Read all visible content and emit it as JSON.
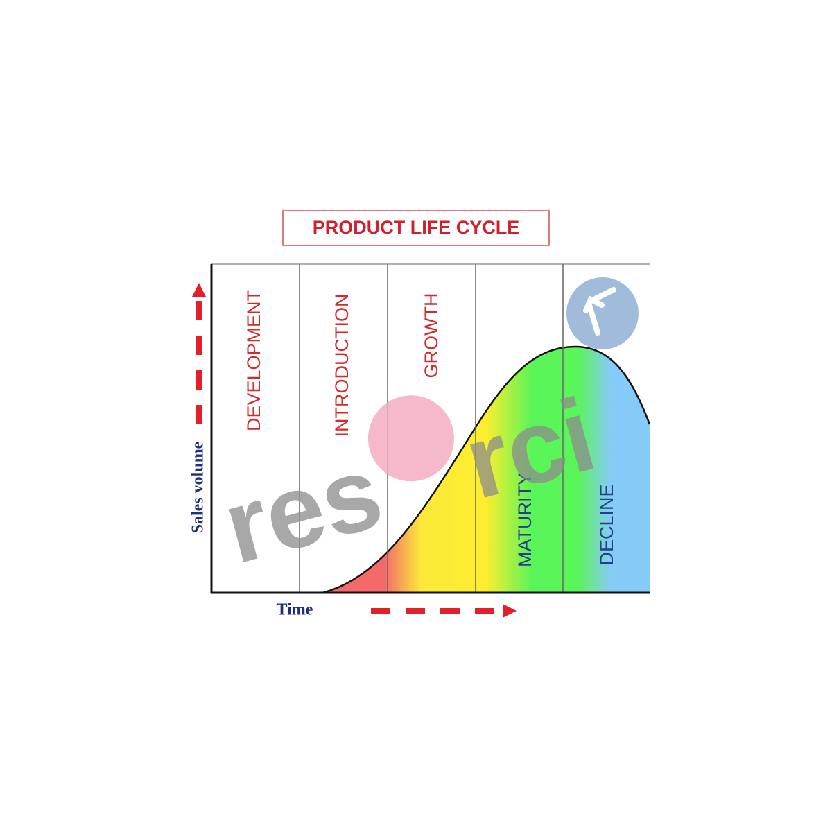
{
  "title": "PRODUCT LIFE CYCLE",
  "stages": [
    "DEVELOPMENT",
    "INTRODUCTION",
    "GROWTH",
    "MATURITY",
    "DECLINE"
  ],
  "y_axis_label": "Sales volume",
  "x_axis_label": "Time",
  "watermark": {
    "left": "res",
    "right": "rci"
  }
}
